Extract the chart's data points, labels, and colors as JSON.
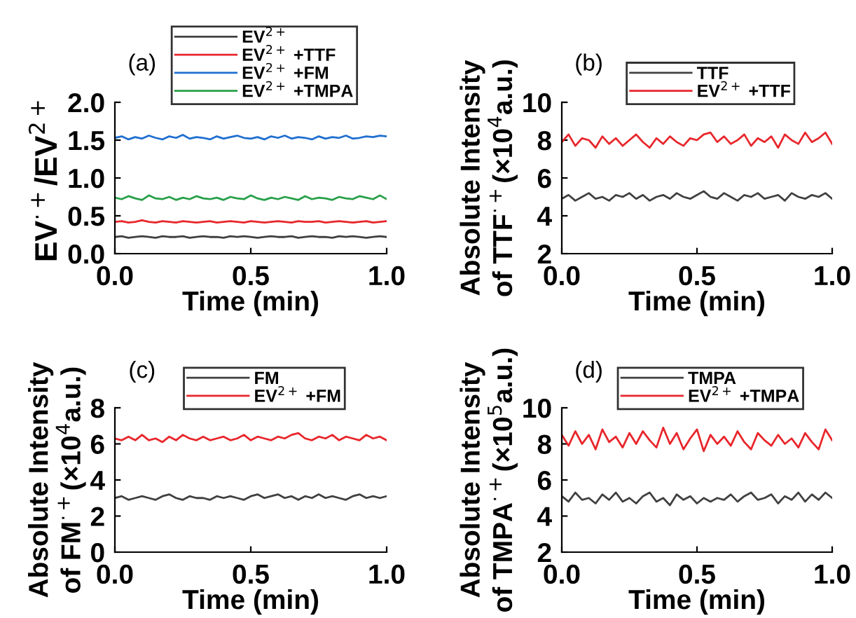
{
  "chart_data": [
    {
      "type": "line",
      "title": "(a)",
      "xlabel": "Time (min)",
      "ylabel": "EV$^{·+}$/EV$^{2+}$",
      "legend": "top",
      "grid": false,
      "x": [
        0,
        0.025,
        0.05,
        0.075,
        0.1,
        0.125,
        0.15,
        0.175,
        0.2,
        0.225,
        0.25,
        0.275,
        0.3,
        0.325,
        0.35,
        0.375,
        0.4,
        0.425,
        0.45,
        0.475,
        0.5,
        0.525,
        0.55,
        0.575,
        0.6,
        0.625,
        0.65,
        0.675,
        0.7,
        0.725,
        0.75,
        0.775,
        0.8,
        0.825,
        0.85,
        0.875,
        0.9,
        0.925,
        0.95,
        0.975,
        1.0
      ],
      "xlim": [
        0,
        1
      ],
      "xticks": [
        {
          "value": 0,
          "label": "0.0"
        },
        {
          "value": 0.5,
          "label": "0.5"
        },
        {
          "value": 1,
          "label": "1.0"
        }
      ],
      "ylim": [
        0,
        2
      ],
      "yticks": [
        {
          "value": 0,
          "label": "0.0"
        },
        {
          "value": 0.5,
          "label": "0.5"
        },
        {
          "value": 1,
          "label": "1.0"
        },
        {
          "value": 1.5,
          "label": "1.5"
        },
        {
          "value": 2,
          "label": "2.0"
        }
      ],
      "series": [
        {
          "name": "EV$^{2+}$",
          "color": "#404040",
          "values": [
            0.22,
            0.23,
            0.21,
            0.22,
            0.23,
            0.22,
            0.21,
            0.23,
            0.22,
            0.22,
            0.23,
            0.21,
            0.22,
            0.23,
            0.22,
            0.22,
            0.21,
            0.23,
            0.22,
            0.23,
            0.22,
            0.21,
            0.22,
            0.23,
            0.22,
            0.22,
            0.23,
            0.21,
            0.22,
            0.23,
            0.22,
            0.22,
            0.21,
            0.23,
            0.22,
            0.23,
            0.22,
            0.21,
            0.22,
            0.23,
            0.22
          ]
        },
        {
          "name": "EV$^{2+}$ +TTF",
          "color": "#e8262b",
          "values": [
            0.42,
            0.43,
            0.41,
            0.42,
            0.44,
            0.42,
            0.41,
            0.43,
            0.42,
            0.41,
            0.43,
            0.42,
            0.41,
            0.42,
            0.43,
            0.41,
            0.42,
            0.43,
            0.42,
            0.41,
            0.43,
            0.42,
            0.41,
            0.42,
            0.43,
            0.42,
            0.41,
            0.43,
            0.42,
            0.42,
            0.43,
            0.41,
            0.42,
            0.43,
            0.42,
            0.41,
            0.42,
            0.43,
            0.41,
            0.42,
            0.43
          ]
        },
        {
          "name": "EV$^{2+}$ +FM",
          "color": "#1f6fd0",
          "values": [
            1.53,
            1.55,
            1.51,
            1.54,
            1.52,
            1.56,
            1.53,
            1.51,
            1.55,
            1.53,
            1.57,
            1.52,
            1.54,
            1.53,
            1.51,
            1.55,
            1.52,
            1.54,
            1.56,
            1.53,
            1.52,
            1.54,
            1.51,
            1.55,
            1.53,
            1.56,
            1.52,
            1.54,
            1.53,
            1.51,
            1.55,
            1.52,
            1.54,
            1.53,
            1.56,
            1.52,
            1.53,
            1.55,
            1.54,
            1.56,
            1.55
          ]
        },
        {
          "name": "EV$^{2+}$ +TMPA",
          "color": "#27a048",
          "values": [
            0.74,
            0.72,
            0.76,
            0.73,
            0.71,
            0.77,
            0.73,
            0.72,
            0.75,
            0.71,
            0.74,
            0.72,
            0.76,
            0.73,
            0.72,
            0.74,
            0.71,
            0.75,
            0.73,
            0.72,
            0.77,
            0.73,
            0.71,
            0.74,
            0.72,
            0.75,
            0.73,
            0.71,
            0.76,
            0.72,
            0.74,
            0.73,
            0.71,
            0.75,
            0.73,
            0.72,
            0.76,
            0.74,
            0.72,
            0.77,
            0.72
          ]
        }
      ]
    },
    {
      "type": "line",
      "title": "(b)",
      "xlabel": "Time (min)",
      "ylabel": "Absolute Intensity\nof TTF$^{·+}$(×10$^{4}$a.u.)",
      "legend": "top",
      "grid": false,
      "x": [
        0,
        0.025,
        0.05,
        0.075,
        0.1,
        0.125,
        0.15,
        0.175,
        0.2,
        0.225,
        0.25,
        0.275,
        0.3,
        0.325,
        0.35,
        0.375,
        0.4,
        0.425,
        0.45,
        0.475,
        0.5,
        0.525,
        0.55,
        0.575,
        0.6,
        0.625,
        0.65,
        0.675,
        0.7,
        0.725,
        0.75,
        0.775,
        0.8,
        0.825,
        0.85,
        0.875,
        0.9,
        0.925,
        0.95,
        0.975,
        1.0
      ],
      "xlim": [
        0,
        1
      ],
      "xticks": [
        {
          "value": 0,
          "label": "0.0"
        },
        {
          "value": 0.5,
          "label": "0.5"
        },
        {
          "value": 1,
          "label": "1.0"
        }
      ],
      "ylim": [
        2,
        10
      ],
      "yticks": [
        2,
        4,
        6,
        8,
        10
      ],
      "series": [
        {
          "name": "TTF",
          "color": "#404040",
          "values": [
            4.9,
            5.1,
            4.8,
            5.0,
            5.2,
            4.9,
            5.0,
            4.8,
            5.1,
            5.0,
            5.2,
            4.9,
            5.1,
            4.8,
            5.0,
            5.1,
            4.9,
            5.2,
            5.0,
            4.9,
            5.1,
            5.3,
            5.0,
            4.9,
            5.2,
            5.0,
            4.8,
            5.1,
            5.0,
            5.2,
            4.9,
            5.0,
            5.1,
            4.8,
            5.2,
            5.0,
            4.9,
            5.1,
            5.0,
            5.2,
            4.9
          ]
        },
        {
          "name": "EV$^{2+}$ +TTF",
          "color": "#e8262b",
          "values": [
            7.9,
            8.3,
            7.7,
            8.1,
            8.0,
            7.6,
            8.2,
            7.8,
            8.1,
            7.7,
            8.0,
            8.3,
            7.9,
            7.6,
            8.1,
            7.8,
            8.2,
            7.9,
            7.7,
            8.1,
            8.0,
            8.3,
            8.4,
            7.9,
            8.2,
            7.8,
            8.0,
            8.3,
            7.7,
            8.1,
            7.9,
            8.2,
            7.6,
            8.3,
            8.0,
            7.8,
            8.4,
            7.9,
            8.1,
            8.4,
            7.8
          ]
        }
      ]
    },
    {
      "type": "line",
      "title": "(c)",
      "xlabel": "Time (min)",
      "ylabel": "Absolute Intensity\nof FM$^{·+}$(×10$^{4}$a.u.)",
      "legend": "top",
      "grid": false,
      "x": [
        0,
        0.025,
        0.05,
        0.075,
        0.1,
        0.125,
        0.15,
        0.175,
        0.2,
        0.225,
        0.25,
        0.275,
        0.3,
        0.325,
        0.35,
        0.375,
        0.4,
        0.425,
        0.45,
        0.475,
        0.5,
        0.525,
        0.55,
        0.575,
        0.6,
        0.625,
        0.65,
        0.675,
        0.7,
        0.725,
        0.75,
        0.775,
        0.8,
        0.825,
        0.85,
        0.875,
        0.9,
        0.925,
        0.95,
        0.975,
        1.0
      ],
      "xlim": [
        0,
        1
      ],
      "xticks": [
        {
          "value": 0,
          "label": "0.0"
        },
        {
          "value": 0.5,
          "label": "0.5"
        },
        {
          "value": 1,
          "label": "1.0"
        }
      ],
      "ylim": [
        0,
        8
      ],
      "yticks": [
        0,
        2,
        4,
        6,
        8
      ],
      "series": [
        {
          "name": "FM",
          "color": "#404040",
          "values": [
            3.0,
            3.1,
            2.9,
            3.0,
            3.1,
            3.0,
            2.9,
            3.1,
            3.2,
            3.0,
            2.9,
            3.1,
            3.0,
            3.0,
            2.9,
            3.1,
            3.0,
            3.1,
            3.0,
            2.9,
            3.1,
            3.2,
            3.0,
            3.1,
            3.2,
            3.0,
            3.1,
            2.9,
            3.1,
            3.0,
            3.2,
            3.0,
            3.1,
            3.0,
            2.9,
            3.1,
            3.2,
            3.0,
            3.1,
            3.0,
            3.1
          ]
        },
        {
          "name": "EV$^{2+}$ +FM",
          "color": "#e8262b",
          "values": [
            6.3,
            6.2,
            6.4,
            6.2,
            6.5,
            6.2,
            6.3,
            6.1,
            6.4,
            6.2,
            6.5,
            6.3,
            6.2,
            6.4,
            6.2,
            6.3,
            6.4,
            6.2,
            6.3,
            6.5,
            6.2,
            6.4,
            6.3,
            6.2,
            6.4,
            6.3,
            6.5,
            6.6,
            6.3,
            6.2,
            6.4,
            6.3,
            6.5,
            6.2,
            6.4,
            6.3,
            6.2,
            6.5,
            6.3,
            6.4,
            6.2
          ]
        }
      ]
    },
    {
      "type": "line",
      "title": "(d)",
      "xlabel": "Time (min)",
      "ylabel": "Absolute Intensity\nof TMPA$^{·+}$(×10$^{5}$a.u.)",
      "legend": "top",
      "grid": false,
      "x": [
        0,
        0.025,
        0.05,
        0.075,
        0.1,
        0.125,
        0.15,
        0.175,
        0.2,
        0.225,
        0.25,
        0.275,
        0.3,
        0.325,
        0.35,
        0.375,
        0.4,
        0.425,
        0.45,
        0.475,
        0.5,
        0.525,
        0.55,
        0.575,
        0.6,
        0.625,
        0.65,
        0.675,
        0.7,
        0.725,
        0.75,
        0.775,
        0.8,
        0.825,
        0.85,
        0.875,
        0.9,
        0.925,
        0.95,
        0.975,
        1.0
      ],
      "xlim": [
        0,
        1
      ],
      "xticks": [
        {
          "value": 0,
          "label": "0.0"
        },
        {
          "value": 0.5,
          "label": "0.5"
        },
        {
          "value": 1,
          "label": "1.0"
        }
      ],
      "ylim": [
        2,
        10
      ],
      "yticks": [
        2,
        4,
        6,
        8,
        10
      ],
      "series": [
        {
          "name": "TMPA",
          "color": "#404040",
          "values": [
            5.1,
            4.8,
            5.3,
            4.9,
            5.0,
            4.7,
            5.2,
            4.9,
            5.3,
            4.8,
            5.0,
            4.7,
            5.1,
            5.3,
            4.8,
            5.0,
            4.6,
            5.2,
            4.9,
            5.1,
            4.7,
            5.0,
            4.8,
            5.0,
            4.9,
            5.2,
            4.8,
            5.1,
            5.3,
            4.9,
            5.0,
            5.2,
            4.7,
            5.1,
            4.9,
            5.3,
            4.8,
            5.2,
            4.9,
            5.3,
            5.0
          ]
        },
        {
          "name": "EV$^{2+}$ +TMPA",
          "color": "#e8262b",
          "values": [
            8.5,
            7.9,
            8.7,
            8.0,
            8.5,
            7.7,
            8.8,
            8.1,
            8.4,
            7.8,
            8.6,
            8.0,
            8.7,
            8.2,
            7.8,
            8.9,
            8.0,
            8.6,
            7.7,
            8.3,
            8.8,
            7.6,
            8.5,
            8.0,
            8.4,
            7.9,
            8.7,
            8.1,
            7.7,
            8.6,
            8.2,
            7.9,
            8.5,
            8.0,
            8.3,
            7.8,
            8.6,
            8.1,
            7.7,
            8.8,
            8.2
          ]
        }
      ]
    }
  ]
}
